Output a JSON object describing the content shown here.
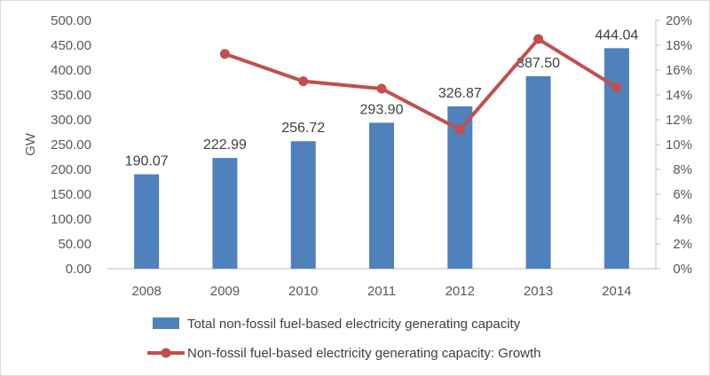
{
  "chart_data": {
    "type": "bar+line",
    "categories": [
      "2008",
      "2009",
      "2010",
      "2011",
      "2012",
      "2013",
      "2014"
    ],
    "series": [
      {
        "name": "Total non-fossil fuel-based electricity generating capacity",
        "type": "bar",
        "axis": "left",
        "color": "#4f81bd",
        "values": [
          190.07,
          222.99,
          256.72,
          293.9,
          326.87,
          387.5,
          444.04
        ],
        "labels": [
          "190.07",
          "222.99",
          "256.72",
          "293.90",
          "326.87",
          "387.50",
          "444.04"
        ]
      },
      {
        "name": "Non-fossil fuel-based electricity generating capacity: Growth",
        "type": "line",
        "axis": "right",
        "color": "#c0504d",
        "values": [
          null,
          0.173,
          0.151,
          0.145,
          0.112,
          0.185,
          0.146
        ]
      }
    ],
    "ylabel": "GW",
    "ylim": [
      0,
      500
    ],
    "y_ticks": [
      "0.00",
      "50.00",
      "100.00",
      "150.00",
      "200.00",
      "250.00",
      "300.00",
      "350.00",
      "400.00",
      "450.00",
      "500.00"
    ],
    "y2lim": [
      0,
      0.2
    ],
    "y2_ticks": [
      "0%",
      "2%",
      "4%",
      "6%",
      "8%",
      "10%",
      "12%",
      "14%",
      "16%",
      "18%",
      "20%"
    ],
    "legend_position": "bottom",
    "grid": false
  }
}
